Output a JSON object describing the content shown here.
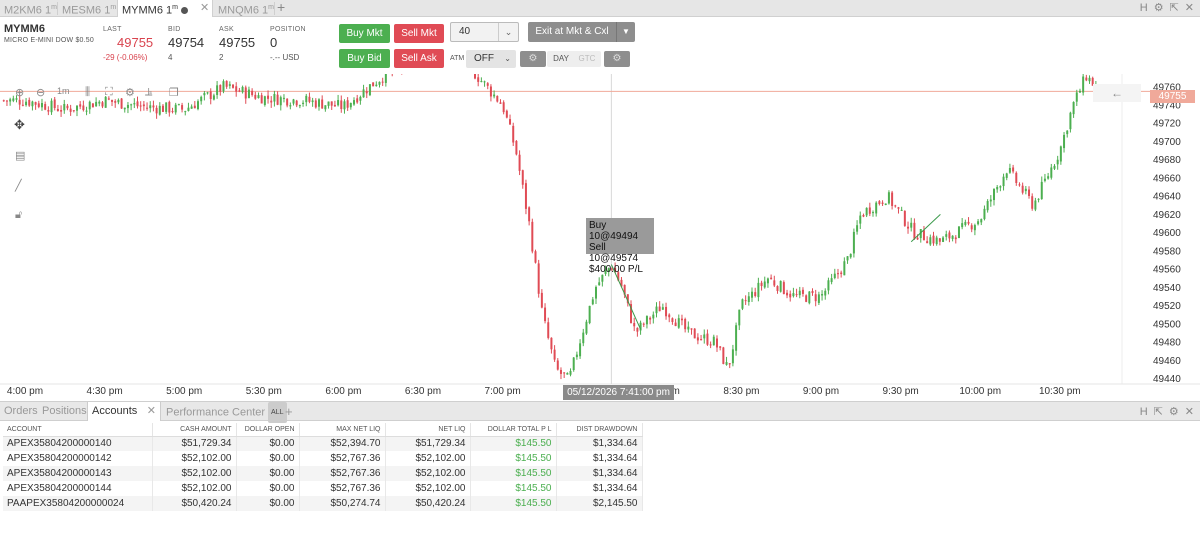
{
  "tabs": [
    {
      "symbol": "M2KM6",
      "interval": "1",
      "sup": "m"
    },
    {
      "symbol": "MESM6",
      "interval": "1",
      "sup": "m"
    },
    {
      "symbol": "MYMM6",
      "interval": "1",
      "sup": "m"
    },
    {
      "symbol": "MNQM6",
      "interval": "1",
      "sup": "m"
    }
  ],
  "window_controls": [
    "H",
    "gear",
    "pop-out",
    "close"
  ],
  "quote": {
    "symbol": "MYMM6",
    "description": "MICRO E-MINI DOW $0.50",
    "last_label": "LAST",
    "last": "49755",
    "change": "-29 (-0.06%)",
    "bid_label": "BID",
    "bid": "49754",
    "bid_size": "4",
    "ask_label": "ASK",
    "ask": "49755",
    "ask_size": "2",
    "position_label": "POSITION",
    "position": "0",
    "position_pl": "-.-- USD"
  },
  "order_entry": {
    "buy_mkt": "Buy Mkt",
    "sell_mkt": "Sell Mkt",
    "buy_bid": "Buy Bid",
    "sell_ask": "Sell Ask",
    "quantity": "40",
    "exit": "Exit at Mkt & Cxl",
    "atm_label": "ATM",
    "atm_value": "OFF",
    "tif_day": "DAY",
    "tif_gtc": "GTC"
  },
  "chart": {
    "current_price": "49755",
    "crosshair_time": "05/12/2026 7:41:00 pm",
    "trade_tooltip": [
      "Buy 10@49494",
      "Sell 10@49574",
      "$400.00 P/L"
    ],
    "interval_button": "1m",
    "colors": {
      "up": "#4caf50",
      "down": "#e04b55",
      "price_line": "#f0a99a"
    }
  },
  "chart_data": {
    "type": "candlestick",
    "title": "",
    "x_ticks": [
      "4:00 pm",
      "4:30 pm",
      "5:00 pm",
      "5:30 pm",
      "6:00 pm",
      "6:30 pm",
      "7:00 pm",
      "7:30 pm",
      "8:00 pm",
      "8:30 pm",
      "9:00 pm",
      "9:30 pm",
      "10:00 pm",
      "10:30 pm"
    ],
    "y_ticks": [
      49760,
      49740,
      49720,
      49700,
      49680,
      49660,
      49640,
      49620,
      49600,
      49580,
      49560,
      49540,
      49520,
      49500,
      49480,
      49460,
      49440
    ],
    "ylim": [
      49434,
      49774
    ],
    "path_points": [
      [
        "4:00 pm",
        49745
      ],
      [
        "4:15 pm",
        49735
      ],
      [
        "4:30 pm",
        49745
      ],
      [
        "4:45 pm",
        49738
      ],
      [
        "5:00 pm",
        49735
      ],
      [
        "5:15 pm",
        49760
      ],
      [
        "5:30 pm",
        49748
      ],
      [
        "5:45 pm",
        49745
      ],
      [
        "6:00 pm",
        49738
      ],
      [
        "6:15 pm",
        49772
      ],
      [
        "6:30 pm",
        49790
      ],
      [
        "6:45 pm",
        49790
      ],
      [
        "7:00 pm",
        49740
      ],
      [
        "7:05 pm",
        49690
      ],
      [
        "7:10 pm",
        49610
      ],
      [
        "7:15 pm",
        49510
      ],
      [
        "7:20 pm",
        49450
      ],
      [
        "7:25 pm",
        49438
      ],
      [
        "7:30 pm",
        49490
      ],
      [
        "7:35 pm",
        49540
      ],
      [
        "7:41 pm",
        49565
      ],
      [
        "7:45 pm",
        49540
      ],
      [
        "7:50 pm",
        49490
      ],
      [
        "8:00 pm",
        49520
      ],
      [
        "8:10 pm",
        49490
      ],
      [
        "8:20 pm",
        49480
      ],
      [
        "8:25 pm",
        49450
      ],
      [
        "8:30 pm",
        49520
      ],
      [
        "8:40 pm",
        49550
      ],
      [
        "8:50 pm",
        49530
      ],
      [
        "9:00 pm",
        49530
      ],
      [
        "9:10 pm",
        49570
      ],
      [
        "9:15 pm",
        49620
      ],
      [
        "9:25 pm",
        49640
      ],
      [
        "9:35 pm",
        49600
      ],
      [
        "9:45 pm",
        49590
      ],
      [
        "10:00 pm",
        49615
      ],
      [
        "10:10 pm",
        49670
      ],
      [
        "10:20 pm",
        49630
      ],
      [
        "10:30 pm",
        49690
      ],
      [
        "10:35 pm",
        49740
      ],
      [
        "10:40 pm",
        49772
      ],
      [
        "10:45 pm",
        49755
      ]
    ]
  },
  "bottom_tabs": {
    "orders": "Orders",
    "positions": "Positions",
    "accounts": "Accounts",
    "performance": "Performance Center",
    "all": "ALL"
  },
  "accounts_table": {
    "columns": [
      "ACCOUNT",
      "CASH AMOUNT",
      "DOLLAR OPEN",
      "MAX NET LIQ",
      "NET LIQ",
      "DOLLAR TOTAL P L",
      "DIST DRAWDOWN"
    ],
    "rows": [
      [
        "APEX35804200000140",
        "$51,729.34",
        "$0.00",
        "$52,394.70",
        "$51,729.34",
        "$145.50",
        "$1,334.64"
      ],
      [
        "APEX35804200000142",
        "$52,102.00",
        "$0.00",
        "$52,767.36",
        "$52,102.00",
        "$145.50",
        "$1,334.64"
      ],
      [
        "APEX35804200000143",
        "$52,102.00",
        "$0.00",
        "$52,767.36",
        "$52,102.00",
        "$145.50",
        "$1,334.64"
      ],
      [
        "APEX35804200000144",
        "$52,102.00",
        "$0.00",
        "$52,767.36",
        "$52,102.00",
        "$145.50",
        "$1,334.64"
      ],
      [
        "PAAPEX35804200000024",
        "$50,420.24",
        "$0.00",
        "$50,274.74",
        "$50,420.24",
        "$145.50",
        "$2,145.50"
      ]
    ]
  }
}
